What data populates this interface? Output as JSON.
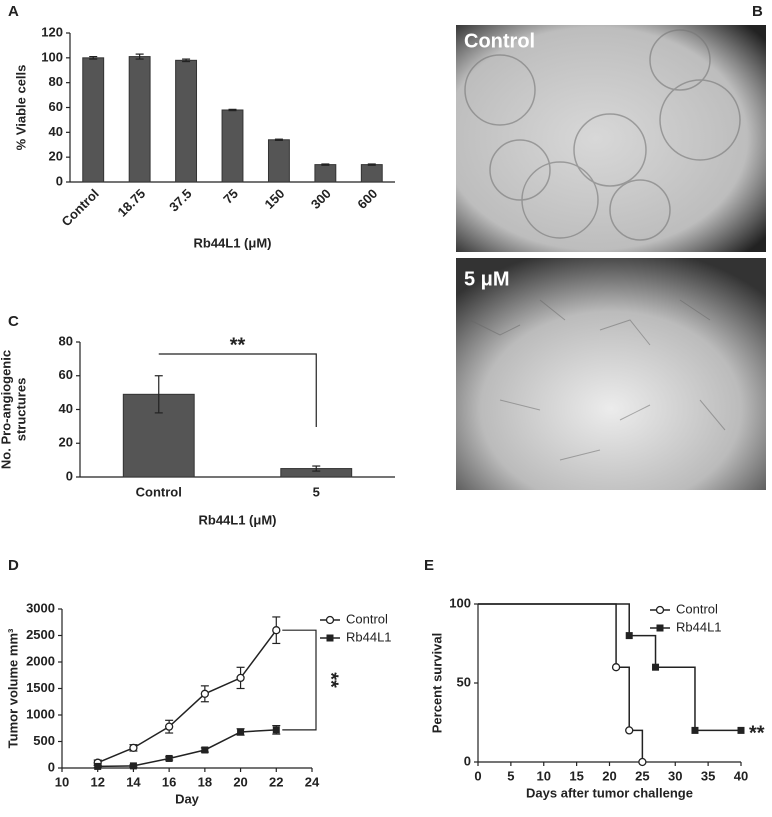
{
  "panels": [
    "A",
    "B",
    "C",
    "D",
    "E"
  ],
  "images": [
    {
      "label": "Control"
    },
    {
      "label": "5 μM"
    }
  ],
  "chart_data": [
    {
      "type": "bar",
      "categories": [
        "Control",
        "18.75",
        "37.5",
        "75",
        "150",
        "300",
        "600"
      ],
      "values": [
        100,
        101,
        98,
        58,
        34,
        14,
        14
      ],
      "errors": [
        1,
        2,
        1,
        0.5,
        0.5,
        0.5,
        0.5
      ],
      "color": "#555555",
      "ylabel": [
        "% Viable cells"
      ],
      "xlabel": "Rb44L1 (μM)",
      "ylim": [
        0,
        120
      ],
      "yticks": [
        0,
        20,
        40,
        60,
        80,
        100,
        120
      ]
    },
    {
      "type": "bar",
      "categories": [
        "Control",
        "5"
      ],
      "values": [
        49,
        5
      ],
      "errors": [
        11,
        1.5
      ],
      "color": "#555555",
      "ylabel": [
        "No. Pro-angiogenic",
        "structures"
      ],
      "xlabel": "Rb44L1 (μM)",
      "annotation": "**",
      "ylim": [
        0,
        80
      ],
      "yticks": [
        0,
        20,
        40,
        60,
        80
      ]
    },
    {
      "type": "line",
      "x": [
        12,
        14,
        16,
        18,
        20,
        22
      ],
      "series": [
        {
          "name": "Control",
          "color": "#222222",
          "marker": "circle",
          "values": [
            100,
            380,
            780,
            1400,
            1700,
            2600
          ],
          "errors": [
            50,
            60,
            120,
            150,
            200,
            250
          ]
        },
        {
          "name": "Rb44L1",
          "color": "#222222",
          "marker": "square",
          "values": [
            30,
            40,
            180,
            340,
            680,
            720
          ],
          "errors": [
            20,
            20,
            30,
            40,
            60,
            80
          ]
        }
      ],
      "ylabel": [
        "Tumor volume mm³"
      ],
      "xlabel": "Day",
      "annotation": "**",
      "xlim": [
        10,
        24
      ],
      "xticks": [
        10,
        12,
        14,
        16,
        18,
        20,
        22,
        24
      ],
      "ylim": [
        0,
        3000
      ],
      "yticks": [
        0,
        500,
        1000,
        1500,
        2000,
        2500,
        3000
      ]
    },
    {
      "type": "step",
      "series": [
        {
          "name": "Control",
          "color": "#222222",
          "marker": "circle",
          "x": [
            0,
            21,
            23,
            25
          ],
          "values": [
            100,
            60,
            20,
            0
          ]
        },
        {
          "name": "Rb44L1",
          "color": "#222222",
          "marker": "square",
          "x": [
            0,
            23,
            27,
            33,
            40
          ],
          "values": [
            100,
            80,
            60,
            20,
            20
          ]
        }
      ],
      "ylabel": [
        "Percent survival"
      ],
      "xlabel": "Days after tumor challenge",
      "annotation": "**",
      "xlim": [
        0,
        40
      ],
      "xticks": [
        0,
        5,
        10,
        15,
        20,
        25,
        30,
        35,
        40
      ],
      "ylim": [
        0,
        100
      ],
      "yticks": [
        0,
        50,
        100
      ]
    }
  ]
}
